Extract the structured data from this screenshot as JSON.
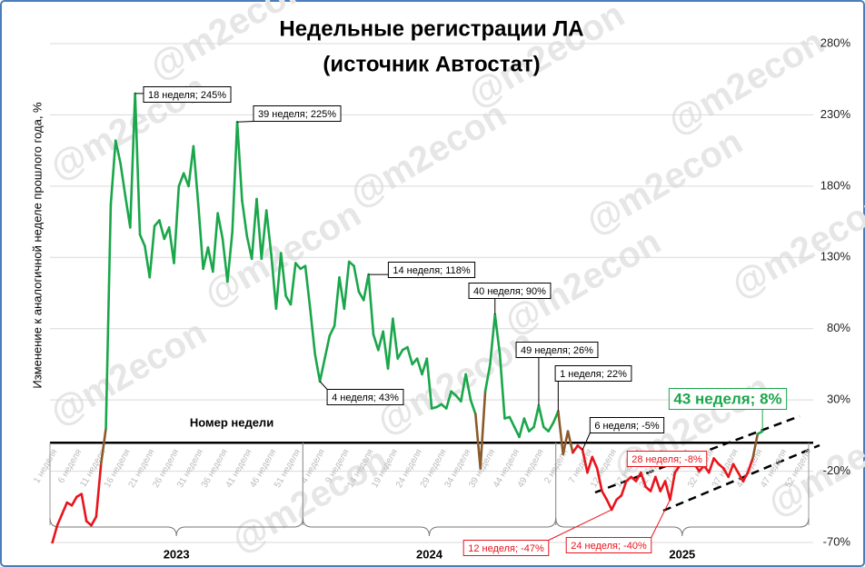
{
  "chart_data": {
    "type": "line",
    "title": [
      "Недельные регистрации ЛА",
      "(источник Автостат)"
    ],
    "ylabel": "Изменение к аналогичной неделе прошлого года, %",
    "xlabel": "Номер недели",
    "watermark": "@m2econ",
    "years": [
      "2023",
      "2024",
      "2025"
    ],
    "categories": [
      "1 неделя",
      null,
      null,
      null,
      null,
      "6 неделя",
      null,
      null,
      null,
      null,
      "11 неделя",
      null,
      null,
      null,
      null,
      "16 неделя",
      null,
      null,
      null,
      null,
      "21 неделя",
      null,
      null,
      null,
      null,
      "26 неделя",
      null,
      null,
      null,
      null,
      "31 неделя",
      null,
      null,
      null,
      null,
      "36 неделя",
      null,
      null,
      null,
      null,
      "41 неделя",
      null,
      null,
      null,
      null,
      "46 неделя",
      null,
      null,
      null,
      null,
      "51 неделя",
      null,
      null,
      null,
      null,
      "4 неделя",
      null,
      null,
      null,
      null,
      "9 неделя",
      null,
      null,
      null,
      null,
      "14 неделя",
      null,
      null,
      null,
      null,
      "19 неделя",
      null,
      null,
      null,
      null,
      "24 неделя",
      null,
      null,
      null,
      null,
      "29 неделя",
      null,
      null,
      null,
      null,
      "34 неделя",
      null,
      null,
      null,
      null,
      "39 неделя",
      null,
      null,
      null,
      null,
      "44 неделя",
      null,
      null,
      null,
      null,
      "49 неделя",
      null,
      null,
      null,
      null,
      "2 неделя",
      null,
      null,
      null,
      null,
      "7 неделя",
      null,
      null,
      null,
      null,
      "12 неделя",
      null,
      null,
      null,
      null,
      "17 неделя",
      null,
      null,
      null,
      null,
      "22 неделя",
      null,
      null,
      null,
      null,
      "27 неделя",
      null,
      null,
      null,
      null,
      "32 неделя",
      null,
      null,
      null,
      null,
      "37 неделя",
      null,
      null,
      null,
      null,
      "42 неделя",
      null,
      null,
      null,
      null,
      "47 неделя",
      null,
      null,
      null,
      null,
      "52 неделя"
    ],
    "series": [
      {
        "color": "#1aa64a",
        "negative_color": "#e8141c",
        "transition_color": "#8b5a2b",
        "values": [
          -70,
          -58,
          -50,
          -42,
          -44,
          -38,
          -36,
          -55,
          -58,
          -52,
          -15,
          10,
          167,
          212,
          196,
          173,
          151,
          245,
          146,
          138,
          116,
          152,
          156,
          143,
          151,
          126,
          180,
          189,
          180,
          208,
          167,
          122,
          137,
          120,
          161,
          143,
          113,
          148,
          225,
          170,
          145,
          129,
          171,
          129,
          163,
          132,
          94,
          133,
          103,
          97,
          126,
          122,
          124,
          94,
          62,
          43,
          59,
          75,
          82,
          116,
          94,
          127,
          124,
          106,
          100,
          118,
          76,
          65,
          78,
          52,
          87,
          59,
          65,
          67,
          55,
          59,
          48,
          59,
          24,
          25,
          27,
          24,
          36,
          33,
          29,
          48,
          30,
          20,
          -18,
          36,
          55,
          90,
          62,
          17,
          18,
          11,
          4,
          17,
          8,
          11,
          26,
          11,
          8,
          14,
          22,
          -8,
          8,
          -7,
          -2,
          -5,
          -21,
          -10,
          -18,
          -34,
          -40,
          -47,
          -40,
          -37,
          -27,
          -24,
          -27,
          -21,
          -31,
          -34,
          -24,
          -34,
          -27,
          -40,
          -21,
          -16,
          -11,
          -8,
          -15,
          -20,
          -16,
          -21,
          -11,
          -15,
          -18,
          -24,
          -15,
          -21,
          -27,
          -21,
          -11,
          6,
          8,
          null,
          null,
          null,
          null,
          null,
          null,
          null,
          null,
          null
        ]
      }
    ],
    "ylim": [
      -70,
      280
    ],
    "yticks": [
      {
        "value": -70,
        "label": "-70%"
      },
      {
        "value": -20,
        "label": "-20%"
      },
      {
        "value": 30,
        "label": "30%"
      },
      {
        "value": 80,
        "label": "80%"
      },
      {
        "value": 130,
        "label": "130%"
      },
      {
        "value": 180,
        "label": "180%"
      },
      {
        "value": 230,
        "label": "230%"
      },
      {
        "value": 280,
        "label": "280%"
      }
    ],
    "grid": true,
    "annotations": [
      {
        "text": "18 неделя; 245%",
        "color": "#000000"
      },
      {
        "text": "39 неделя; 225%",
        "color": "#000000"
      },
      {
        "text": "14 неделя; 118%",
        "color": "#000000"
      },
      {
        "text": "4 неделя; 43%",
        "color": "#000000"
      },
      {
        "text": "40 неделя; 90%",
        "color": "#000000"
      },
      {
        "text": "49 неделя; 26%",
        "color": "#000000"
      },
      {
        "text": "1 неделя; 22%",
        "color": "#000000"
      },
      {
        "text": "6 неделя; -5%",
        "color": "#000000"
      },
      {
        "text": "28 неделя; -8%",
        "color": "#e8141c"
      },
      {
        "text": "12 неделя; -47%",
        "color": "#e8141c"
      },
      {
        "text": "24 неделя; -40%",
        "color": "#e8141c"
      },
      {
        "text": "43 неделя; 8%",
        "color": "#1aa64a"
      }
    ]
  }
}
